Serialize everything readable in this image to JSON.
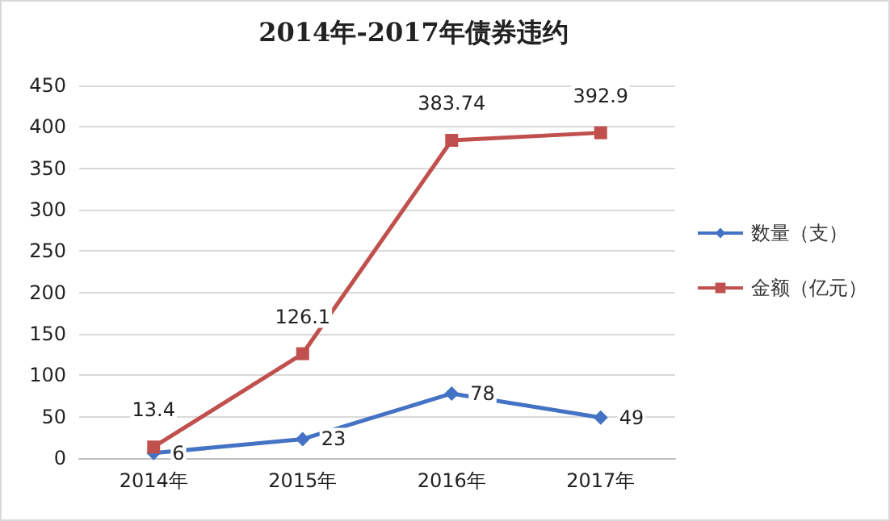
{
  "chart_data": {
    "type": "line",
    "title": "2014年-2017年债券违约",
    "categories": [
      "2014年",
      "2015年",
      "2016年",
      "2017年"
    ],
    "series": [
      {
        "name": "数量（支）",
        "color": "#4472c4",
        "marker": "diamond",
        "values": [
          6,
          23,
          78,
          49
        ]
      },
      {
        "name": "金额（亿元）",
        "color": "#c0504d",
        "marker": "square",
        "values": [
          13.4,
          126.1,
          383.74,
          392.9
        ]
      }
    ],
    "ylim": [
      0,
      450
    ],
    "yticks": [
      0,
      50,
      100,
      150,
      200,
      250,
      300,
      350,
      400,
      450
    ],
    "grid": "y",
    "legend": "right",
    "data_labels": true
  }
}
